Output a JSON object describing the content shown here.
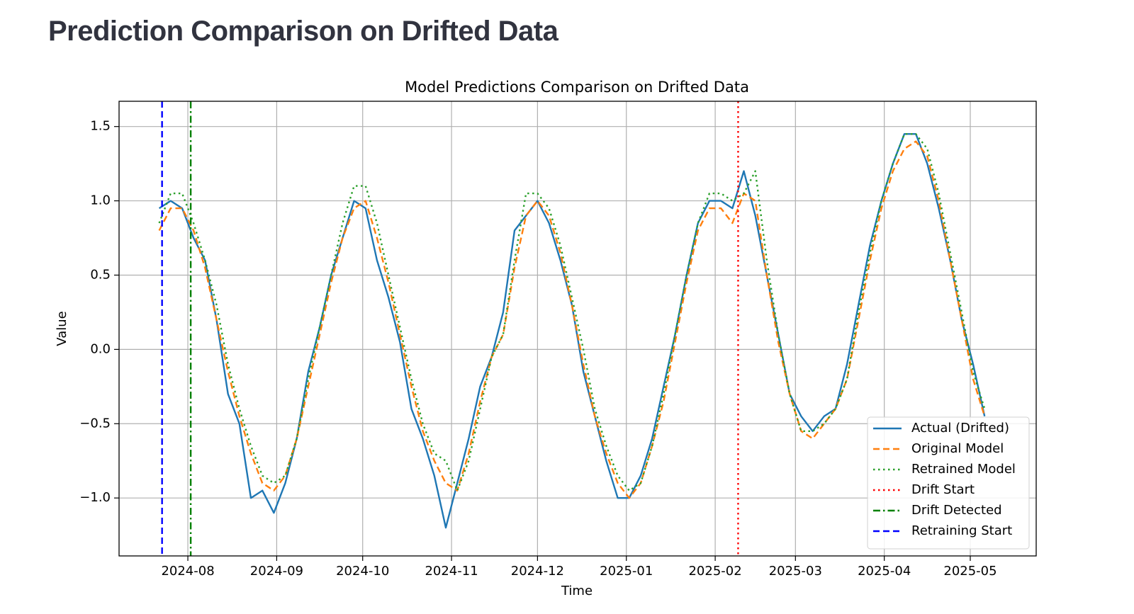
{
  "header": {
    "title": "Prediction Comparison on Drifted Data"
  },
  "chart_data": {
    "type": "line",
    "title": "Model Predictions Comparison on Drifted Data",
    "xlabel": "Time",
    "ylabel": "Value",
    "x": [
      "2024-07-22",
      "2024-07-26",
      "2024-07-30",
      "2024-08-03",
      "2024-08-07",
      "2024-08-11",
      "2024-08-15",
      "2024-08-19",
      "2024-08-23",
      "2024-08-27",
      "2024-08-31",
      "2024-09-04",
      "2024-09-08",
      "2024-09-12",
      "2024-09-16",
      "2024-09-20",
      "2024-09-24",
      "2024-09-28",
      "2024-10-02",
      "2024-10-06",
      "2024-10-10",
      "2024-10-14",
      "2024-10-18",
      "2024-10-22",
      "2024-10-26",
      "2024-10-30",
      "2024-11-03",
      "2024-11-07",
      "2024-11-11",
      "2024-11-15",
      "2024-11-19",
      "2024-11-23",
      "2024-11-27",
      "2024-12-01",
      "2024-12-05",
      "2024-12-09",
      "2024-12-13",
      "2024-12-17",
      "2024-12-21",
      "2024-12-25",
      "2024-12-29",
      "2025-01-02",
      "2025-01-06",
      "2025-01-10",
      "2025-01-14",
      "2025-01-18",
      "2025-01-22",
      "2025-01-26",
      "2025-01-30",
      "2025-02-03",
      "2025-02-07",
      "2025-02-11",
      "2025-02-15",
      "2025-02-19",
      "2025-02-23",
      "2025-02-27",
      "2025-03-03",
      "2025-03-07",
      "2025-03-11",
      "2025-03-15",
      "2025-03-19",
      "2025-03-23",
      "2025-03-27",
      "2025-03-31",
      "2025-04-04",
      "2025-04-08",
      "2025-04-12",
      "2025-04-16",
      "2025-04-20",
      "2025-04-24",
      "2025-04-28",
      "2025-05-02",
      "2025-05-06"
    ],
    "series": [
      {
        "name": "Actual (Drifted)",
        "color": "#1f77b4",
        "style": "solid",
        "values": [
          0.95,
          1.0,
          0.95,
          0.75,
          0.6,
          0.2,
          -0.3,
          -0.5,
          -1.0,
          -0.95,
          -1.1,
          -0.9,
          -0.6,
          -0.15,
          0.15,
          0.5,
          0.75,
          1.0,
          0.95,
          0.6,
          0.35,
          0.05,
          -0.4,
          -0.6,
          -0.85,
          -1.2,
          -0.9,
          -0.6,
          -0.25,
          -0.05,
          0.25,
          0.8,
          0.9,
          1.0,
          0.85,
          0.6,
          0.3,
          -0.15,
          -0.45,
          -0.75,
          -1.0,
          -1.0,
          -0.85,
          -0.6,
          -0.25,
          0.1,
          0.5,
          0.85,
          1.0,
          1.0,
          0.95,
          1.2,
          0.9,
          0.5,
          0.1,
          -0.3,
          -0.45,
          -0.55,
          -0.45,
          -0.4,
          -0.1,
          0.3,
          0.7,
          1.0,
          1.25,
          1.45,
          1.45,
          1.25,
          0.95,
          0.6,
          0.2,
          -0.1,
          -0.45
        ]
      },
      {
        "name": "Original Model",
        "color": "#ff7f0e",
        "style": "dashed",
        "values": [
          0.8,
          0.95,
          0.95,
          0.8,
          0.55,
          0.2,
          -0.15,
          -0.45,
          -0.7,
          -0.9,
          -0.95,
          -0.85,
          -0.6,
          -0.25,
          0.1,
          0.45,
          0.75,
          0.95,
          1.0,
          0.75,
          0.45,
          0.1,
          -0.25,
          -0.55,
          -0.75,
          -0.9,
          -0.95,
          -0.7,
          -0.35,
          -0.05,
          0.1,
          0.55,
          0.9,
          1.0,
          0.9,
          0.65,
          0.3,
          -0.1,
          -0.45,
          -0.7,
          -0.9,
          -1.0,
          -0.9,
          -0.65,
          -0.35,
          0.05,
          0.45,
          0.8,
          0.95,
          0.95,
          0.85,
          1.05,
          1.0,
          0.5,
          0.05,
          -0.3,
          -0.55,
          -0.6,
          -0.5,
          -0.4,
          -0.2,
          0.2,
          0.6,
          0.95,
          1.2,
          1.35,
          1.4,
          1.3,
          1.0,
          0.6,
          0.2,
          -0.2,
          -0.45
        ]
      },
      {
        "name": "Retrained Model",
        "color": "#2ca02c",
        "style": "dotted",
        "values": [
          0.85,
          1.05,
          1.05,
          0.85,
          0.6,
          0.3,
          -0.1,
          -0.4,
          -0.65,
          -0.85,
          -0.9,
          -0.85,
          -0.6,
          -0.2,
          0.15,
          0.5,
          0.85,
          1.1,
          1.1,
          0.85,
          0.5,
          0.15,
          -0.2,
          -0.5,
          -0.7,
          -0.75,
          -0.95,
          -0.75,
          -0.4,
          -0.05,
          0.1,
          0.6,
          1.05,
          1.05,
          0.95,
          0.7,
          0.35,
          0.0,
          -0.4,
          -0.65,
          -0.85,
          -0.95,
          -0.9,
          -0.65,
          -0.3,
          0.1,
          0.5,
          0.85,
          1.05,
          1.05,
          1.0,
          1.05,
          1.2,
          0.6,
          0.1,
          -0.3,
          -0.55,
          -0.55,
          -0.5,
          -0.4,
          -0.2,
          0.25,
          0.65,
          1.0,
          1.25,
          1.45,
          1.45,
          1.35,
          1.05,
          0.65,
          0.25,
          -0.15,
          -0.4
        ]
      }
    ],
    "vlines": [
      {
        "name": "Drift Start",
        "x": "2025-02-09",
        "color": "#ff0000",
        "style": "dotted"
      },
      {
        "name": "Drift Detected",
        "x": "2024-08-02",
        "color": "#008000",
        "style": "dashdot"
      },
      {
        "name": "Retraining Start",
        "x": "2024-07-23",
        "color": "#0000ff",
        "style": "dashed"
      }
    ],
    "xlim": [
      "2024-07-08",
      "2025-05-24"
    ],
    "xticks": [
      {
        "value": "2024-08-01",
        "label": "2024-08"
      },
      {
        "value": "2024-09-01",
        "label": "2024-09"
      },
      {
        "value": "2024-10-01",
        "label": "2024-10"
      },
      {
        "value": "2024-11-01",
        "label": "2024-11"
      },
      {
        "value": "2024-12-01",
        "label": "2024-12"
      },
      {
        "value": "2025-01-01",
        "label": "2025-01"
      },
      {
        "value": "2025-02-01",
        "label": "2025-02"
      },
      {
        "value": "2025-03-01",
        "label": "2025-03"
      },
      {
        "value": "2025-04-01",
        "label": "2025-04"
      },
      {
        "value": "2025-05-01",
        "label": "2025-05"
      }
    ],
    "ylim": [
      -1.39,
      1.67
    ],
    "yticks": [
      {
        "value": -1.0,
        "label": "−1.0"
      },
      {
        "value": -0.5,
        "label": "−0.5"
      },
      {
        "value": 0,
        "label": "0.0"
      },
      0.5,
      {
        "value": 1.0,
        "label": "1.0"
      },
      1.5
    ],
    "grid": true,
    "legend": "lower right"
  }
}
